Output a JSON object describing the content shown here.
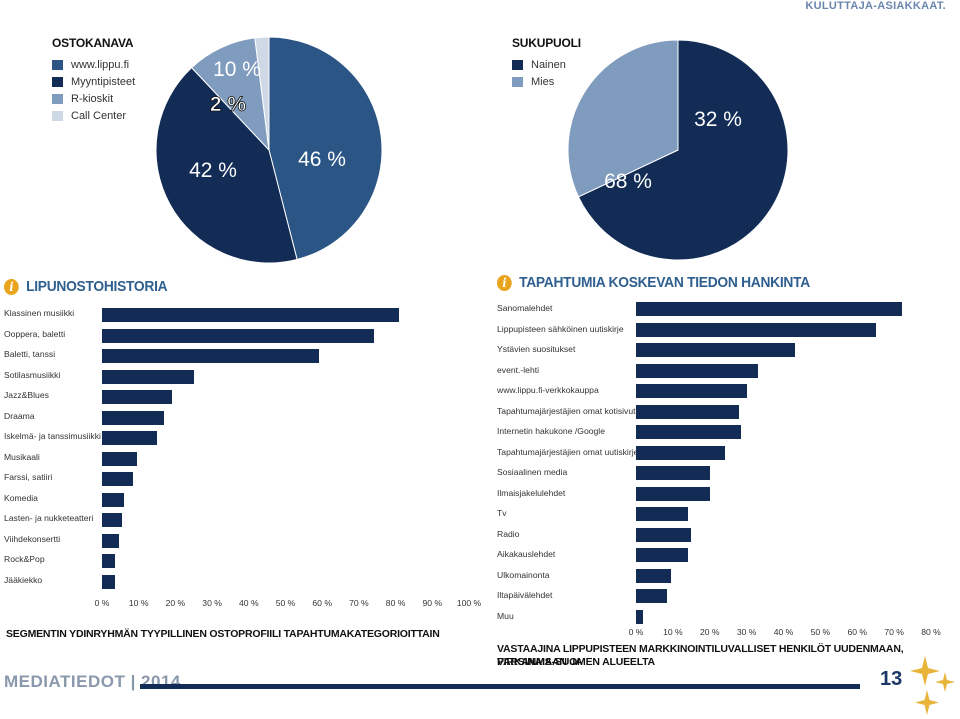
{
  "top_tag": "KULUTTAJA-ASIAKKAAT.",
  "colors": {
    "navy": "#122c55",
    "dark_blue": "#2b5585",
    "steel": "#7f9bbe",
    "light": "#cfd9e6",
    "orange": "#e8a41c"
  },
  "ostokanava": {
    "title": "OSTOKANAVA",
    "legend": [
      "www.lippu.fi",
      "Myyntipisteet",
      "R-kioskit",
      "Call Center"
    ]
  },
  "sukupuoli": {
    "title": "SUKUPUOLI",
    "legend": [
      "Nainen",
      "Mies"
    ]
  },
  "lipunosto": {
    "header": "LIPUNOSTOHISTORIA"
  },
  "tapahtumia": {
    "header": "TAPAHTUMIA KOSKEVAN TIEDON HANKINTA"
  },
  "footer": {
    "left_caption": "SEGMENTIN YDINRYHMÄN TYYPILLINEN OSTOPROFIILI TAPAHTUMAKATEGORIOITTAIN",
    "right_caption_1": "VASTAAJINA LIPPUPISTEEN MARKKINOINTILUVALLISET HENKILÖT UUDENMAAN, PIRKANMAAN JA",
    "right_caption_2": "VARSINAIS-SUOMEN ALUEELTA",
    "mediatiedot": "MEDIATIEDOT | 2014",
    "page": "13"
  },
  "chart_data": [
    {
      "type": "pie",
      "title": "OSTOKANAVA",
      "categories": [
        "www.lippu.fi",
        "Myyntipisteet",
        "R-kioskit",
        "Call Center"
      ],
      "values": [
        46,
        42,
        10,
        2
      ],
      "labels": [
        "46 %",
        "42 %",
        "10 %",
        "2 %"
      ],
      "colors": [
        "#2b5585",
        "#122c55",
        "#7f9bbe",
        "#cfd9e6"
      ]
    },
    {
      "type": "pie",
      "title": "SUKUPUOLI",
      "categories": [
        "Nainen",
        "Mies"
      ],
      "values": [
        68,
        32
      ],
      "labels": [
        "68 %",
        "32 %"
      ],
      "colors": [
        "#122c55",
        "#7f9bbe"
      ]
    },
    {
      "type": "bar",
      "orientation": "horizontal",
      "categories": [
        "Klassinen musiikki",
        "Ooppera, baletti",
        "Baletti, tanssi",
        "Sotilasmusiikki",
        "Jazz&Blues",
        "Draama",
        "Iskelmä- ja tanssimusiikki",
        "Musikaali",
        "Farssi, satiiri",
        "Komedia",
        "Lasten- ja nukketeatteri",
        "Viihdekonsertti",
        "Rock&Pop",
        "Jääkiekko"
      ],
      "values": [
        81,
        74,
        59,
        25,
        19,
        17,
        15,
        9.5,
        8.5,
        6,
        5.5,
        4.5,
        3.5,
        3.5
      ],
      "xlim": [
        0,
        100
      ],
      "ticks": [
        "0 %",
        "10 %",
        "20 %",
        "30 %",
        "40 %",
        "50 %",
        "60 %",
        "70 %",
        "80 %",
        "90 %",
        "100 %"
      ]
    },
    {
      "type": "bar",
      "orientation": "horizontal",
      "categories": [
        "Sanomalehdet",
        "Lippupisteen sähköinen uutiskirje",
        "Ystävien suositukset",
        "event.-lehti",
        "www.lippu.fi-verkkokauppa",
        "Tapahtumajärjestäjien omat kotisivut",
        "Internetin hakukone /Google",
        "Tapahtumajärjestäjien omat uutiskirjeet",
        "Sosiaalinen media",
        "Ilmaisjakelulehdet",
        "Tv",
        "Radio",
        "Aikakauslehdet",
        "Ulkomainonta",
        "Iltapäivälehdet",
        "Muu"
      ],
      "values": [
        72,
        65,
        43,
        33,
        30,
        28,
        28.5,
        24,
        20,
        20,
        14,
        15,
        14,
        9.5,
        8.5,
        2
      ],
      "xlim": [
        0,
        80
      ],
      "ticks": [
        "0 %",
        "10 %",
        "20 %",
        "30 %",
        "40 %",
        "50 %",
        "60 %",
        "70 %",
        "80 %"
      ]
    }
  ]
}
